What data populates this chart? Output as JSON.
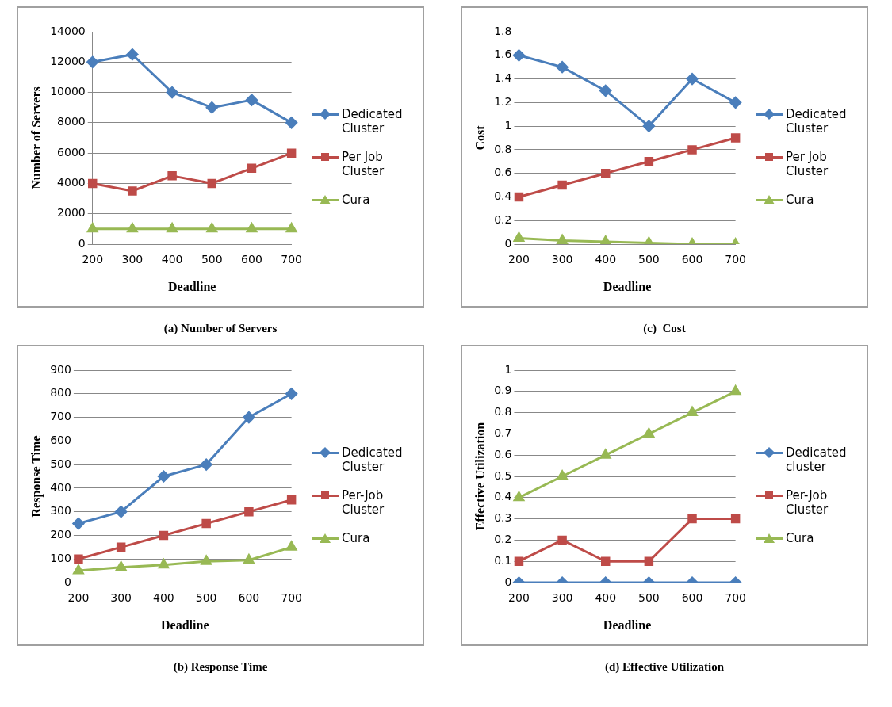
{
  "chart_data": [
    {
      "type": "line",
      "title": "(a) Number of Servers",
      "xlabel": "Deadline",
      "ylabel": "Number of Servers",
      "categories": [
        "200",
        "300",
        "400",
        "500",
        "600",
        "700"
      ],
      "ylim": [
        0,
        14000
      ],
      "yticks": [
        0,
        2000,
        4000,
        6000,
        8000,
        10000,
        12000,
        14000
      ],
      "grid": "y",
      "legend": "right",
      "series": [
        {
          "name": "Dedicated Cluster",
          "color": "#4a7ebb",
          "marker": "diamond",
          "values": [
            12000,
            12500,
            10000,
            9000,
            9500,
            8000
          ]
        },
        {
          "name": "Per Job Cluster",
          "color": "#be4b48",
          "marker": "square",
          "values": [
            4000,
            3500,
            4500,
            4000,
            5000,
            6000
          ]
        },
        {
          "name": "Cura",
          "color": "#98b954",
          "marker": "triangle",
          "values": [
            1000,
            1000,
            1000,
            1000,
            1000,
            1000
          ]
        }
      ]
    },
    {
      "type": "line",
      "title": "(c)  Cost",
      "xlabel": "Deadline",
      "ylabel": "Cost",
      "categories": [
        "200",
        "300",
        "400",
        "500",
        "600",
        "700"
      ],
      "ylim": [
        0,
        1.8
      ],
      "yticks": [
        0,
        0.2,
        0.4,
        0.6,
        0.8,
        1,
        1.2,
        1.4,
        1.6,
        1.8
      ],
      "grid": "y",
      "legend": "right",
      "series": [
        {
          "name": "Dedicated Cluster",
          "color": "#4a7ebb",
          "marker": "diamond",
          "values": [
            1.6,
            1.5,
            1.3,
            1.0,
            1.4,
            1.2
          ]
        },
        {
          "name": "Per Job Cluster",
          "color": "#be4b48",
          "marker": "square",
          "values": [
            0.4,
            0.5,
            0.6,
            0.7,
            0.8,
            0.9
          ]
        },
        {
          "name": "Cura",
          "color": "#98b954",
          "marker": "triangle",
          "values": [
            0.05,
            0.03,
            0.02,
            0.01,
            0,
            0
          ]
        }
      ]
    },
    {
      "type": "line",
      "title": "(b) Response Time",
      "xlabel": "Deadline",
      "ylabel": "Response Time",
      "categories": [
        "200",
        "300",
        "400",
        "500",
        "600",
        "700"
      ],
      "ylim": [
        0,
        900
      ],
      "yticks": [
        0,
        100,
        200,
        300,
        400,
        500,
        600,
        700,
        800,
        900
      ],
      "grid": "y",
      "legend": "right",
      "series": [
        {
          "name": "Dedicated Cluster",
          "color": "#4a7ebb",
          "marker": "diamond",
          "values": [
            250,
            300,
            450,
            500,
            700,
            800
          ]
        },
        {
          "name": "Per-Job Cluster",
          "color": "#be4b48",
          "marker": "square",
          "values": [
            100,
            150,
            200,
            250,
            300,
            350
          ]
        },
        {
          "name": "Cura",
          "color": "#98b954",
          "marker": "triangle",
          "values": [
            50,
            65,
            75,
            90,
            95,
            150
          ]
        }
      ]
    },
    {
      "type": "line",
      "title": "(d) Effective Utilization",
      "xlabel": "Deadline",
      "ylabel": "Effective Utilization",
      "categories": [
        "200",
        "300",
        "400",
        "500",
        "600",
        "700"
      ],
      "ylim": [
        0,
        1
      ],
      "yticks": [
        0,
        0.1,
        0.2,
        0.3,
        0.4,
        0.5,
        0.6,
        0.7,
        0.8,
        0.9,
        1
      ],
      "grid": "y",
      "legend": "right",
      "series": [
        {
          "name": "Dedicated cluster",
          "color": "#4a7ebb",
          "marker": "diamond",
          "values": [
            0,
            0,
            0,
            0,
            0,
            0
          ]
        },
        {
          "name": "Per-Job Cluster",
          "color": "#be4b48",
          "marker": "square",
          "values": [
            0.1,
            0.2,
            0.1,
            0.1,
            0.3,
            0.3
          ]
        },
        {
          "name": "Cura",
          "color": "#98b954",
          "marker": "triangle",
          "values": [
            0.4,
            0.5,
            0.6,
            0.7,
            0.8,
            0.9
          ]
        }
      ]
    }
  ]
}
